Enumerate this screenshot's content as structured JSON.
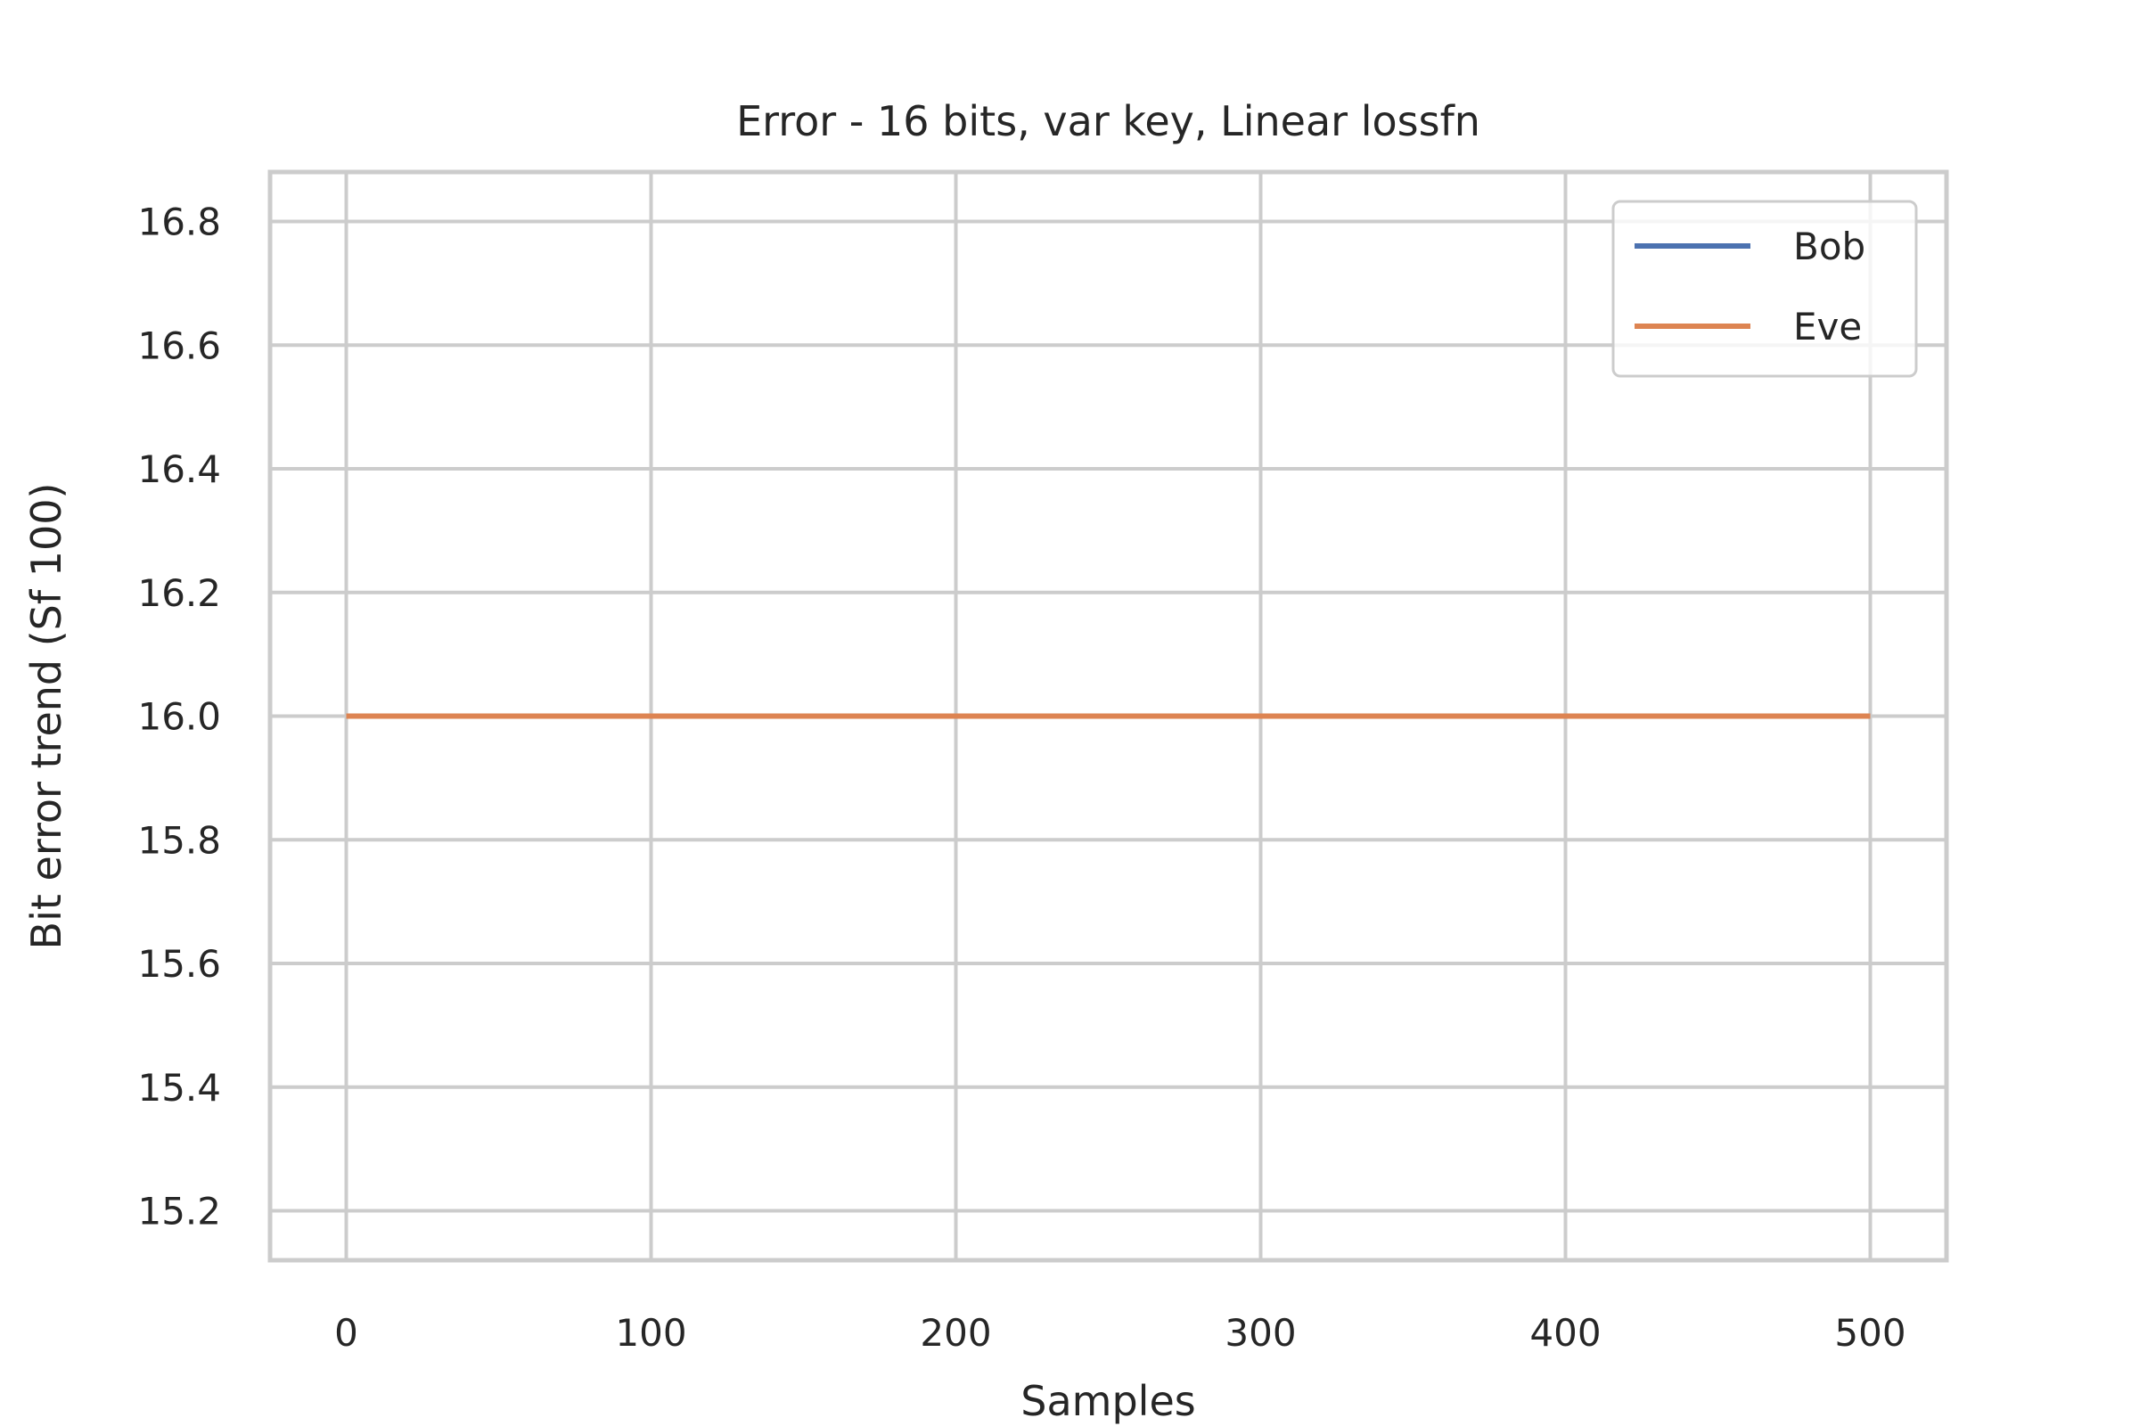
{
  "chart_data": {
    "type": "line",
    "title": "Error - 16 bits, var key, Linear lossfn",
    "xlabel": "Samples",
    "ylabel": "Bit error trend (Sf 100)",
    "xlim": [
      -25,
      525
    ],
    "ylim": [
      15.12,
      16.88
    ],
    "xticks": [
      0,
      100,
      200,
      300,
      400,
      500
    ],
    "xtick_labels": [
      "0",
      "100",
      "200",
      "300",
      "400",
      "500"
    ],
    "yticks": [
      15.2,
      15.4,
      15.6,
      15.8,
      16.0,
      16.2,
      16.4,
      16.6,
      16.8
    ],
    "ytick_labels": [
      "15.2",
      "15.4",
      "15.6",
      "15.8",
      "16.0",
      "16.2",
      "16.4",
      "16.6",
      "16.8"
    ],
    "grid": true,
    "legend_position": "top-right",
    "series": [
      {
        "name": "Bob",
        "color": "#4c72b0",
        "x": [
          0,
          500
        ],
        "y": [
          16.0,
          16.0
        ]
      },
      {
        "name": "Eve",
        "color": "#dd8452",
        "x": [
          0,
          500
        ],
        "y": [
          16.0,
          16.0
        ]
      }
    ]
  },
  "colors": {
    "grid": "#cccccc",
    "spine": "#cccccc",
    "text": "#262626",
    "background": "#ffffff"
  }
}
